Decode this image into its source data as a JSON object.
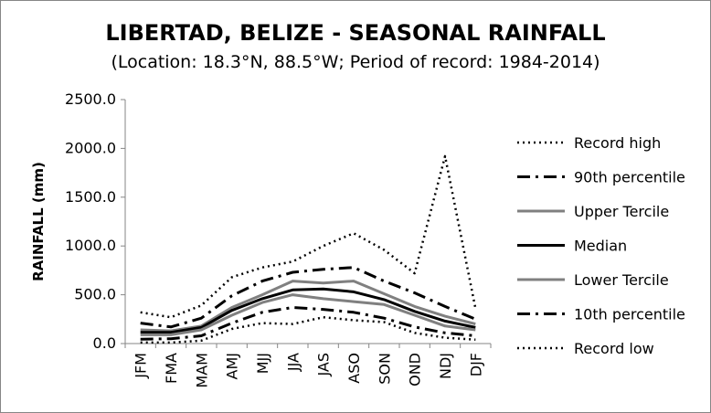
{
  "chart_data": {
    "type": "line",
    "title": "LIBERTAD, BELIZE - SEASONAL RAINFALL",
    "subtitle": "(Location: 18.3°N, 88.5°W; Period of record: 1984-2014)",
    "ylabel": "RAINFALL (mm)",
    "xlabel": "",
    "ylim": [
      0,
      2500
    ],
    "yticks": [
      "0.0",
      "500.0",
      "1000.0",
      "1500.0",
      "2000.0",
      "2500.0"
    ],
    "ytick_values": [
      0,
      500,
      1000,
      1500,
      2000,
      2500
    ],
    "grid": false,
    "legend_position": "right",
    "categories": [
      "JFM",
      "FMA",
      "MAM",
      "AMJ",
      "MJJ",
      "JJA",
      "JAS",
      "ASO",
      "SON",
      "OND",
      "NDJ",
      "DJF"
    ],
    "series": [
      {
        "name": "Record high",
        "style": "dotted",
        "color": "#000000",
        "values": [
          320,
          270,
          390,
          680,
          780,
          840,
          1000,
          1130,
          960,
          720,
          1920,
          360
        ]
      },
      {
        "name": "90th percentile",
        "style": "dashdot",
        "color": "#000000",
        "values": [
          210,
          170,
          260,
          490,
          640,
          730,
          760,
          780,
          640,
          520,
          380,
          250
        ]
      },
      {
        "name": "Upper Tercile",
        "style": "solid",
        "color": "#808080",
        "values": [
          140,
          130,
          180,
          370,
          500,
          640,
          620,
          640,
          510,
          380,
          280,
          200
        ]
      },
      {
        "name": "Median",
        "style": "solid",
        "color": "#000000",
        "values": [
          115,
          115,
          165,
          340,
          460,
          550,
          560,
          530,
          450,
          330,
          230,
          165
        ]
      },
      {
        "name": "Lower Tercile",
        "style": "solid",
        "color": "#808080",
        "values": [
          90,
          90,
          140,
          290,
          420,
          500,
          460,
          430,
          400,
          290,
          180,
          140
        ]
      },
      {
        "name": "10th percentile",
        "style": "dashdot",
        "color": "#000000",
        "values": [
          45,
          50,
          80,
          210,
          320,
          370,
          350,
          320,
          260,
          170,
          110,
          80
        ]
      },
      {
        "name": "Record low",
        "style": "dotted",
        "color": "#000000",
        "values": [
          10,
          10,
          30,
          150,
          210,
          200,
          270,
          240,
          220,
          110,
          60,
          40
        ]
      }
    ]
  }
}
